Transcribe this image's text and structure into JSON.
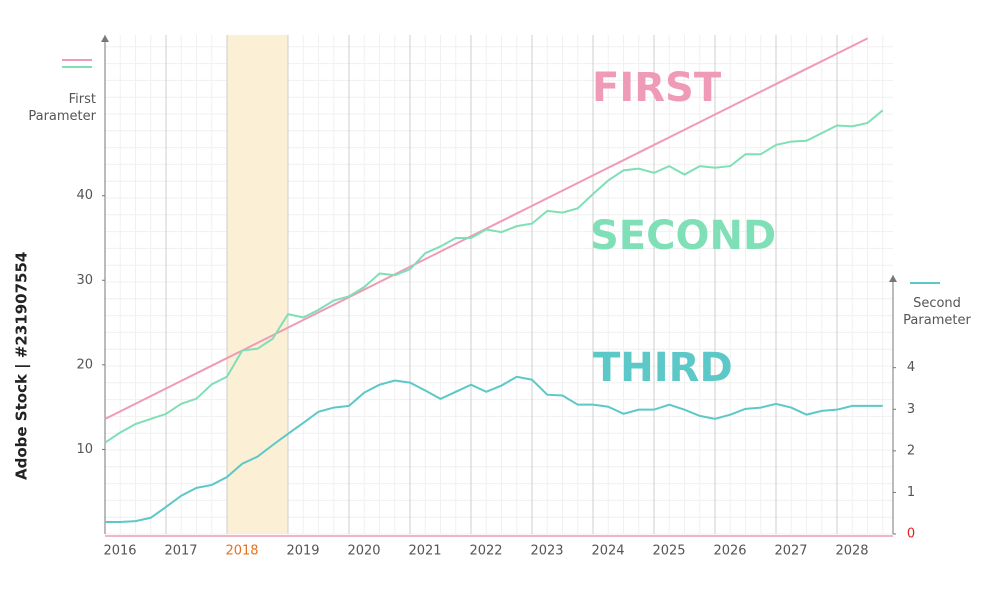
{
  "chart_data": {
    "type": "line",
    "x": [
      2016,
      2016.25,
      2016.5,
      2016.75,
      2017,
      2017.25,
      2017.5,
      2017.75,
      2018,
      2018.25,
      2018.5,
      2018.75,
      2019,
      2019.25,
      2019.5,
      2019.75,
      2020,
      2020.25,
      2020.5,
      2020.75,
      2021,
      2021.25,
      2021.5,
      2021.75,
      2022,
      2022.25,
      2022.5,
      2022.75,
      2023,
      2023.25,
      2023.5,
      2023.75,
      2024,
      2024.25,
      2024.5,
      2024.75,
      2025,
      2025.25,
      2025.5,
      2025.75,
      2026,
      2026.25,
      2026.5,
      2026.75,
      2027,
      2027.25,
      2027.5,
      2027.75,
      2028,
      2028.25,
      2028.5,
      2028.75
    ],
    "xlim": [
      2016,
      2029
    ],
    "xticks": [
      2016,
      2017,
      2018,
      2019,
      2020,
      2021,
      2022,
      2023,
      2024,
      2025,
      2026,
      2027,
      2028
    ],
    "ylim": [
      0,
      59
    ],
    "yticks": [
      10,
      20,
      30,
      40
    ],
    "ylabel": "First Parameter",
    "y2lim": [
      0,
      12
    ],
    "y2ticks": [
      0,
      1,
      2,
      3,
      4
    ],
    "y2label": "Second Parameter",
    "highlight": [
      2018,
      2019
    ],
    "highlight_color": "#fbefd6",
    "highlight_label_color": "#e8701e",
    "grid": true,
    "series": [
      {
        "name": "FIRST",
        "color": "#ef9bb8",
        "values": [
          13.6,
          14.5,
          15.4,
          16.3,
          17.2,
          18.1,
          19,
          19.9,
          20.8,
          21.7,
          22.6,
          23.5,
          24.4,
          25.3,
          26.2,
          27.1,
          28,
          28.9,
          29.8,
          30.7,
          31.6,
          32.5,
          33.4,
          34.3,
          35.2,
          36.1,
          37,
          37.9,
          38.8,
          39.7,
          40.6,
          41.5,
          42.4,
          43.3,
          44.2,
          45.1,
          46,
          46.9,
          47.8,
          48.7,
          49.6,
          50.5,
          51.4,
          52.3,
          53.2,
          54.1,
          55,
          55.9,
          56.8,
          57.7,
          58.6,
          null
        ]
      },
      {
        "name": "SECOND",
        "color": "#7fdfb6",
        "values": [
          10.8,
          12,
          13,
          13.6,
          14.2,
          15.4,
          16,
          17.7,
          18.6,
          21.7,
          21.9,
          23.1,
          26,
          25.6,
          26.5,
          27.6,
          28.1,
          29.2,
          30.8,
          30.6,
          31.3,
          33.2,
          34,
          35,
          35,
          36,
          35.7,
          36.4,
          36.7,
          38.2,
          38,
          38.5,
          40.2,
          41.8,
          43,
          43.2,
          42.7,
          43.5,
          42.5,
          43.5,
          43.3,
          43.5,
          44.9,
          44.9,
          46,
          46.4,
          46.5,
          47.4,
          48.3,
          48.2,
          48.6,
          50.1
        ]
      },
      {
        "name": "THIRD",
        "color": "#5cc8c8",
        "axis": "y2",
        "values": [
          0.29,
          0.29,
          0.31,
          0.39,
          0.65,
          0.92,
          1.11,
          1.18,
          1.37,
          1.69,
          1.86,
          2.14,
          2.41,
          2.67,
          2.94,
          3.04,
          3.08,
          3.4,
          3.59,
          3.69,
          3.64,
          3.45,
          3.25,
          3.42,
          3.59,
          3.42,
          3.57,
          3.78,
          3.71,
          3.35,
          3.33,
          3.11,
          3.11,
          3.06,
          2.89,
          2.99,
          2.99,
          3.11,
          2.99,
          2.84,
          2.77,
          2.87,
          3.01,
          3.04,
          3.13,
          3.04,
          2.87,
          2.96,
          2.99,
          3.08,
          3.08,
          3.08
        ]
      }
    ],
    "watermark": "Adobe Stock | #231907554"
  }
}
